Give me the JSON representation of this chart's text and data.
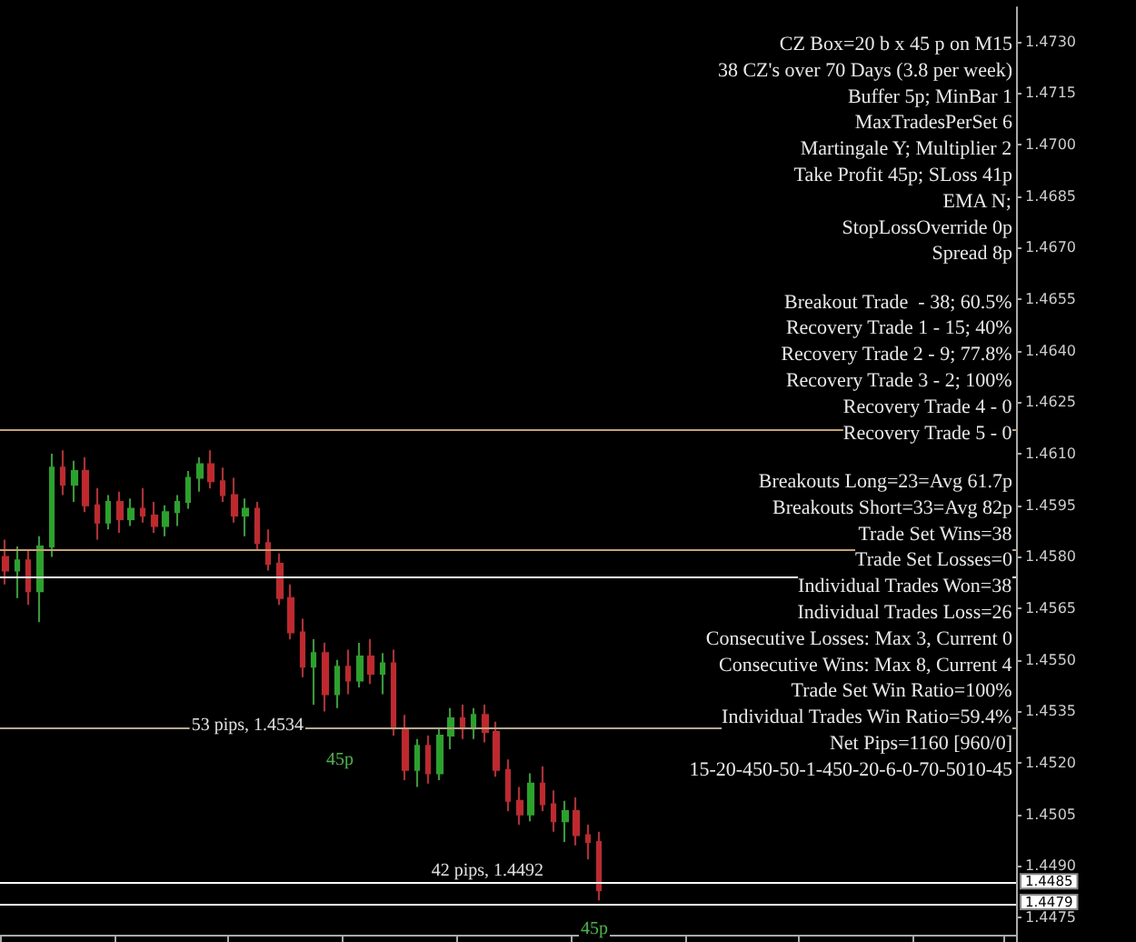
{
  "chart_data": {
    "type": "candlestick",
    "tick_labels": "y",
    "grid": false,
    "categories": [
      null,
      null,
      null,
      null,
      null,
      null,
      null,
      null,
      null,
      null,
      null,
      null,
      null,
      null,
      null,
      null,
      null,
      null,
      null,
      null,
      null,
      null,
      null,
      null,
      null,
      null,
      null,
      null,
      null,
      null,
      null,
      null,
      null,
      null,
      null,
      null,
      null,
      null,
      null,
      null,
      null,
      null,
      null,
      null,
      null,
      null,
      null,
      null,
      null,
      null,
      null,
      null,
      null,
      null,
      null,
      null,
      null,
      null,
      null,
      null,
      null,
      null,
      null,
      null,
      null,
      null,
      null,
      null,
      null,
      null,
      null,
      null,
      null,
      null,
      null,
      null,
      null,
      null,
      null,
      null,
      null,
      null,
      null,
      null,
      null,
      null,
      null,
      null,
      null
    ],
    "ohlc": [
      [
        1.458,
        1.4585,
        1.4572,
        1.4576
      ],
      [
        1.4576,
        1.4583,
        1.4568,
        1.4579
      ],
      [
        1.4579,
        1.4582,
        1.4566,
        1.457
      ],
      [
        1.457,
        1.4586,
        1.4561,
        1.4583
      ],
      [
        1.4583,
        1.461,
        1.458,
        1.4606
      ],
      [
        1.4606,
        1.4611,
        1.4598,
        1.4601
      ],
      [
        1.4601,
        1.4608,
        1.4596,
        1.4605
      ],
      [
        1.4605,
        1.4609,
        1.4593,
        1.4595
      ],
      [
        1.4595,
        1.46,
        1.4585,
        1.459
      ],
      [
        1.459,
        1.4598,
        1.4588,
        1.4596
      ],
      [
        1.4596,
        1.4599,
        1.4587,
        1.4591
      ],
      [
        1.4591,
        1.4597,
        1.4589,
        1.4594
      ],
      [
        1.4594,
        1.46,
        1.459,
        1.4592
      ],
      [
        1.4592,
        1.4596,
        1.4587,
        1.4589
      ],
      [
        1.4589,
        1.4595,
        1.4586,
        1.4593
      ],
      [
        1.4593,
        1.4598,
        1.4589,
        1.4596
      ],
      [
        1.4596,
        1.4605,
        1.4594,
        1.4603
      ],
      [
        1.4603,
        1.4609,
        1.4599,
        1.4607
      ],
      [
        1.4607,
        1.4611,
        1.46,
        1.4602
      ],
      [
        1.4602,
        1.4606,
        1.4596,
        1.4598
      ],
      [
        1.4598,
        1.4603,
        1.459,
        1.4592
      ],
      [
        1.4592,
        1.4597,
        1.4586,
        1.4594
      ],
      [
        1.4594,
        1.4596,
        1.4582,
        1.4584
      ],
      [
        1.4584,
        1.4588,
        1.4576,
        1.4578
      ],
      [
        1.4578,
        1.4581,
        1.4566,
        1.4568
      ],
      [
        1.4568,
        1.4572,
        1.4556,
        1.4558
      ],
      [
        1.4558,
        1.4562,
        1.4545,
        1.4548
      ],
      [
        1.4548,
        1.4556,
        1.4537,
        1.4552
      ],
      [
        1.4552,
        1.4555,
        1.4535,
        1.454
      ],
      [
        1.454,
        1.455,
        1.4536,
        1.4548
      ],
      [
        1.4548,
        1.4553,
        1.454,
        1.4544
      ],
      [
        1.4544,
        1.4555,
        1.4542,
        1.4551
      ],
      [
        1.4551,
        1.4556,
        1.4543,
        1.4546
      ],
      [
        1.4546,
        1.4552,
        1.454,
        1.4549
      ],
      [
        1.4549,
        1.4553,
        1.4528,
        1.453
      ],
      [
        1.453,
        1.4534,
        1.4515,
        1.4518
      ],
      [
        1.4518,
        1.4527,
        1.4513,
        1.4525
      ],
      [
        1.4525,
        1.4528,
        1.4514,
        1.4517
      ],
      [
        1.4517,
        1.453,
        1.4515,
        1.4528
      ],
      [
        1.4528,
        1.4536,
        1.4524,
        1.4533
      ],
      [
        1.4533,
        1.4537,
        1.4527,
        1.453
      ],
      [
        1.453,
        1.4536,
        1.4527,
        1.4534
      ],
      [
        1.4534,
        1.4537,
        1.4526,
        1.4529
      ],
      [
        1.4529,
        1.4532,
        1.4516,
        1.4518
      ],
      [
        1.4518,
        1.4521,
        1.4506,
        1.4509
      ],
      [
        1.4509,
        1.4513,
        1.4502,
        1.4505
      ],
      [
        1.4505,
        1.4517,
        1.4503,
        1.4514
      ],
      [
        1.4514,
        1.4519,
        1.4506,
        1.4508
      ],
      [
        1.4508,
        1.4512,
        1.45,
        1.4503
      ],
      [
        1.4503,
        1.4509,
        1.4497,
        1.4506
      ],
      [
        1.4506,
        1.451,
        1.4496,
        1.4499
      ],
      [
        1.4499,
        1.4502,
        1.4492,
        1.4497
      ],
      [
        1.4497,
        1.45,
        1.448,
        1.4483
      ],
      null,
      null,
      null,
      null,
      null,
      null,
      null,
      null,
      null,
      null,
      null,
      null,
      null,
      null,
      null,
      null,
      null,
      null,
      null,
      null,
      null,
      null,
      null,
      null,
      null,
      null,
      null,
      null,
      null,
      null,
      null,
      null,
      null,
      null,
      null,
      null
    ],
    "colors": [
      "#c0282d",
      "#29a329",
      "#c0282d",
      "#29a329",
      "#29a329",
      "#c0282d",
      "#29a329",
      "#c0282d",
      "#c0282d",
      "#29a329",
      "#c0282d",
      "#29a329",
      "#c0282d",
      "#c0282d",
      "#29a329",
      "#29a329",
      "#29a329",
      "#29a329",
      "#c0282d",
      "#c0282d",
      "#c0282d",
      "#29a329",
      "#c0282d",
      "#c0282d",
      "#c0282d",
      "#c0282d",
      "#c0282d",
      "#29a329",
      "#c0282d",
      "#29a329",
      "#c0282d",
      "#29a329",
      "#c0282d",
      "#29a329",
      "#c0282d",
      "#c0282d",
      "#29a329",
      "#c0282d",
      "#29a329",
      "#29a329",
      "#c0282d",
      "#29a329",
      "#c0282d",
      "#c0282d",
      "#c0282d",
      "#c0282d",
      "#29a329",
      "#c0282d",
      "#c0282d",
      "#29a329",
      "#c0282d",
      "#c0282d",
      "#c0282d",
      null,
      null,
      null,
      null,
      null,
      null,
      null,
      null,
      null,
      null,
      null,
      null,
      null,
      null,
      null,
      null,
      null,
      null,
      null,
      null,
      null,
      null,
      null,
      null,
      null,
      null,
      null,
      null,
      null,
      null,
      null,
      null,
      null,
      null,
      null,
      null
    ],
    "ylim": [
      1.447,
      1.474
    ],
    "yticks": [
      1.4475,
      {
        "value": 1.449,
        "label": "1.4490"
      },
      1.4505,
      {
        "value": 1.452,
        "label": "1.4520"
      },
      1.4535,
      {
        "value": 1.455,
        "label": "1.4550"
      },
      1.4565,
      {
        "value": 1.458,
        "label": "1.4580"
      },
      1.4595,
      {
        "value": 1.461,
        "label": "1.4610"
      },
      1.4625,
      {
        "value": 1.464,
        "label": "1.4640"
      },
      1.4655,
      {
        "value": 1.467,
        "label": "1.4670"
      },
      1.4685,
      {
        "value": 1.47,
        "label": "1.4700"
      },
      1.4715,
      {
        "value": 1.473,
        "label": "1.4730"
      }
    ],
    "ref_lines": [
      {
        "axis": "y",
        "value": 1.4617,
        "label": null,
        "color": "#c8a06a"
      },
      {
        "axis": "y",
        "value": 1.4582,
        "label": null,
        "color": "#c8a06a"
      },
      {
        "axis": "y",
        "value": 1.4574,
        "label": null,
        "color": "#ffffff"
      },
      {
        "axis": "y",
        "value": 1.453,
        "label": null,
        "color": "#b8a888"
      },
      {
        "axis": "y",
        "value": 1.4485,
        "label": "1.4485",
        "color": "#ffffff"
      },
      {
        "axis": "y",
        "value": 1.4479,
        "label": "1.4479",
        "color": "#ffffff"
      }
    ],
    "annotations": [
      "CZ Box=20 b x 45 p on M15",
      "38 CZ's over 70 Days (3.8 per week)",
      "Buffer 5p; MinBar 1",
      "MaxTradesPerSet 6",
      "Martingale Y; Multiplier 2",
      "Take Profit 45p; SLoss 41p",
      "EMA N;",
      "StopLossOverride 0p",
      "Spread 8p",
      "Breakout Trade  - 38; 60.5%",
      "Recovery Trade 1 - 15; 40%",
      "Recovery Trade 2 - 9; 77.8%",
      "Recovery Trade 3 - 2; 100%",
      "Recovery Trade 4 - 0",
      "Recovery Trade 5 - 0",
      "Breakouts Long=23=Avg 61.7p",
      "Breakouts Short=33=Avg 82p",
      "Trade Set Wins=38",
      "Trade Set Losses=0",
      "Individual Trades Won=38",
      "Individual Trades Loss=26",
      "Consecutive Losses: Max 3, Current 0",
      "Consecutive Wins: Max 8, Current 4",
      "Trade Set Win Ratio=100%",
      "Individual Trades Win Ratio=59.4%",
      "Net Pips=1160 [960/0]",
      "15-20-450-50-1-450-20-6-0-70-5010-45",
      "53 pips, 1.4534",
      "45p",
      "42 pips, 1.4492",
      "45p"
    ]
  }
}
